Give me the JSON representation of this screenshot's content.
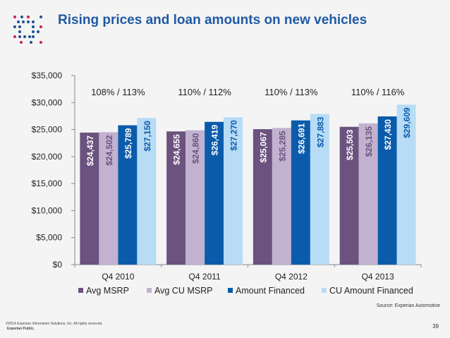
{
  "header": {
    "title": "Rising prices and loan amounts on new vehicles"
  },
  "footer": {
    "source": "Source: Experian Automotive",
    "copyright": "©2014 Experian Information Solutions, Inc. All rights reserved.",
    "classification": "Experian Public.",
    "page_number": "39"
  },
  "chart_data": {
    "type": "bar",
    "title": "Rising prices and loan amounts on new vehicles",
    "xlabel": "",
    "ylabel": "",
    "categories": [
      "Q4 2010",
      "Q4 2011",
      "Q4 2012",
      "Q4 2013"
    ],
    "ylim": [
      0,
      35000
    ],
    "yticks": [
      0,
      5000,
      10000,
      15000,
      20000,
      25000,
      30000,
      35000
    ],
    "ytick_labels": [
      "$0",
      "$5,000",
      "$10,000",
      "$15,000",
      "$20,000",
      "$25,000",
      "$30,000",
      "$35,000"
    ],
    "series": [
      {
        "name": "Avg MSRP",
        "color": "#6b527f",
        "label_color": "#ffffff",
        "values": [
          24437,
          24655,
          25067,
          25503
        ],
        "labels": [
          "$24,437",
          "$24,655",
          "$25,067",
          "$25,503"
        ]
      },
      {
        "name": "Avg CU MSRP",
        "color": "#c2b2d0",
        "label_color": "#6b527f",
        "values": [
          24502,
          24860,
          25285,
          26135
        ],
        "labels": [
          "$24,502",
          "$24,860",
          "$25,285",
          "$26,135"
        ]
      },
      {
        "name": "Amount Financed",
        "color": "#0b5bab",
        "label_color": "#ffffff",
        "values": [
          25789,
          26419,
          26691,
          27430
        ],
        "labels": [
          "$25,789",
          "$26,419",
          "$26,691",
          "$27,430"
        ]
      },
      {
        "name": "CU Amount Financed",
        "color": "#b8dcf6",
        "label_color": "#0b5bab",
        "values": [
          27150,
          27270,
          27883,
          29609
        ],
        "labels": [
          "$27,150",
          "$27,270",
          "$27,883",
          "$29,609"
        ]
      }
    ],
    "annotations": [
      "108% / 113%",
      "110% / 112%",
      "110% / 113%",
      "110% / 116%"
    ],
    "legend_position": "bottom",
    "grid": false
  }
}
